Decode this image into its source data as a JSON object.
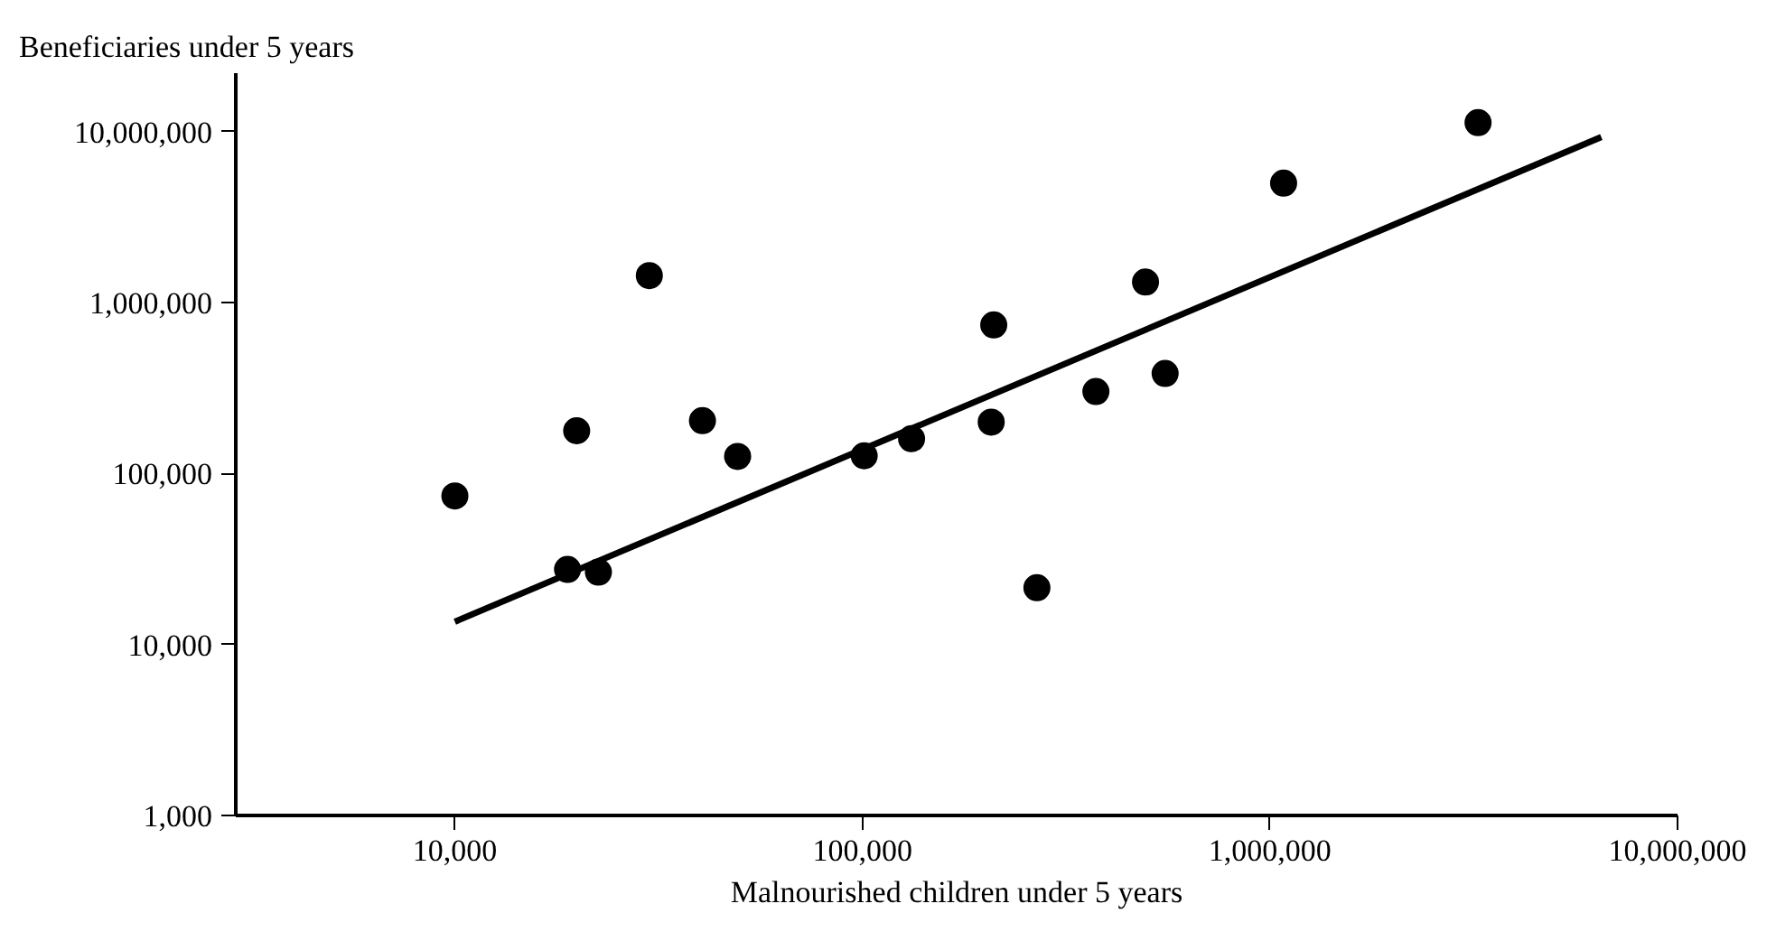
{
  "chart_data": {
    "type": "scatter",
    "xlabel": "Malnourished children under 5 years",
    "ylabel": "Beneficiaries under 5 years",
    "log": "xy",
    "grid": false,
    "xlim": [
      2900,
      10000000
    ],
    "ylim": [
      1000,
      22000000
    ],
    "xticks": [
      {
        "value": 10000,
        "label": "10,000"
      },
      {
        "value": 100000,
        "label": "100,000"
      },
      {
        "value": 1000000,
        "label": "1,000,000"
      },
      {
        "value": 10000000,
        "label": "10,000,000"
      }
    ],
    "yticks": [
      {
        "value": 1000,
        "label": "1,000"
      },
      {
        "value": 10000,
        "label": "10,000"
      },
      {
        "value": 100000,
        "label": "100,000"
      },
      {
        "value": 1000000,
        "label": "1,000,000"
      },
      {
        "value": 10000000,
        "label": "10,000,000"
      }
    ],
    "series": [
      {
        "color": "#000000",
        "marker": "circle",
        "x": [
          10000,
          19900,
          18900,
          22500,
          30000,
          40500,
          49400,
          101000,
          132000,
          207000,
          210000,
          268000,
          374000,
          495000,
          553000,
          1080000,
          3240000
        ],
        "values": [
          74000,
          178000,
          27500,
          26500,
          1440000,
          204000,
          126000,
          127000,
          160000,
          200000,
          740000,
          21500,
          302000,
          1320000,
          385000,
          5000000,
          11300000
        ]
      },
      {
        "type": "line",
        "color": "#000000",
        "line_style": "solid",
        "x": [
          10000,
          6500000
        ],
        "values": [
          13600,
          9300000
        ]
      }
    ]
  }
}
